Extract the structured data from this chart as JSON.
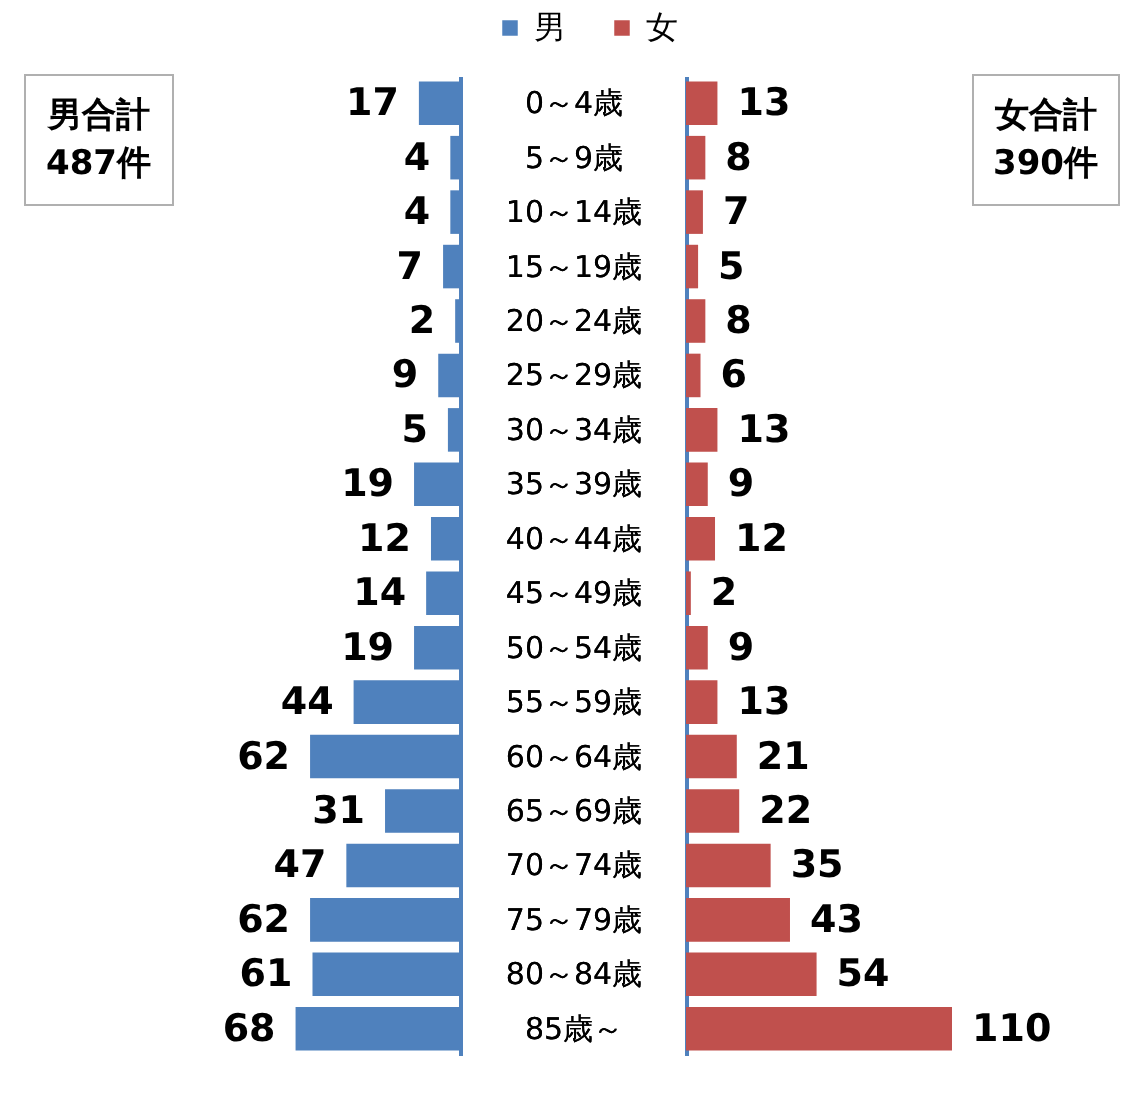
{
  "chart_data": [
    {
      "type": "bar",
      "orientation": "horizontal",
      "categories": [
        "0～4歳",
        "5～9歳",
        "10～14歳",
        "15～19歳",
        "20～24歳",
        "25～29歳",
        "30～34歳",
        "35～39歳",
        "40～44歳",
        "45～49歳",
        "50～54歳",
        "55～59歳",
        "60～64歳",
        "65～69歳",
        "70～74歳",
        "75～79歳",
        "80～84歳",
        "85歳～"
      ],
      "series": [
        {
          "name": "男",
          "color": "#4f81bd",
          "values": [
            17,
            4,
            4,
            7,
            2,
            9,
            5,
            19,
            12,
            14,
            19,
            44,
            62,
            31,
            47,
            62,
            61,
            68
          ]
        }
      ],
      "data_labels": true,
      "legend": "top",
      "annotations": [
        "男合計\n487件"
      ]
    },
    {
      "type": "bar",
      "orientation": "horizontal",
      "categories": [
        "0～4歳",
        "5～9歳",
        "10～14歳",
        "15～19歳",
        "20～24歳",
        "25～29歳",
        "30～34歳",
        "35～39歳",
        "40～44歳",
        "45～49歳",
        "50～54歳",
        "55～59歳",
        "60～64歳",
        "65～69歳",
        "70～74歳",
        "75～79歳",
        "80～84歳",
        "85歳～"
      ],
      "series": [
        {
          "name": "女",
          "color": "#c0504d",
          "values": [
            13,
            8,
            7,
            5,
            8,
            6,
            13,
            9,
            12,
            2,
            9,
            13,
            21,
            22,
            35,
            43,
            54,
            110
          ]
        }
      ],
      "data_labels": true,
      "legend": "top",
      "annotations": [
        "女合計\n390件"
      ]
    }
  ]
}
